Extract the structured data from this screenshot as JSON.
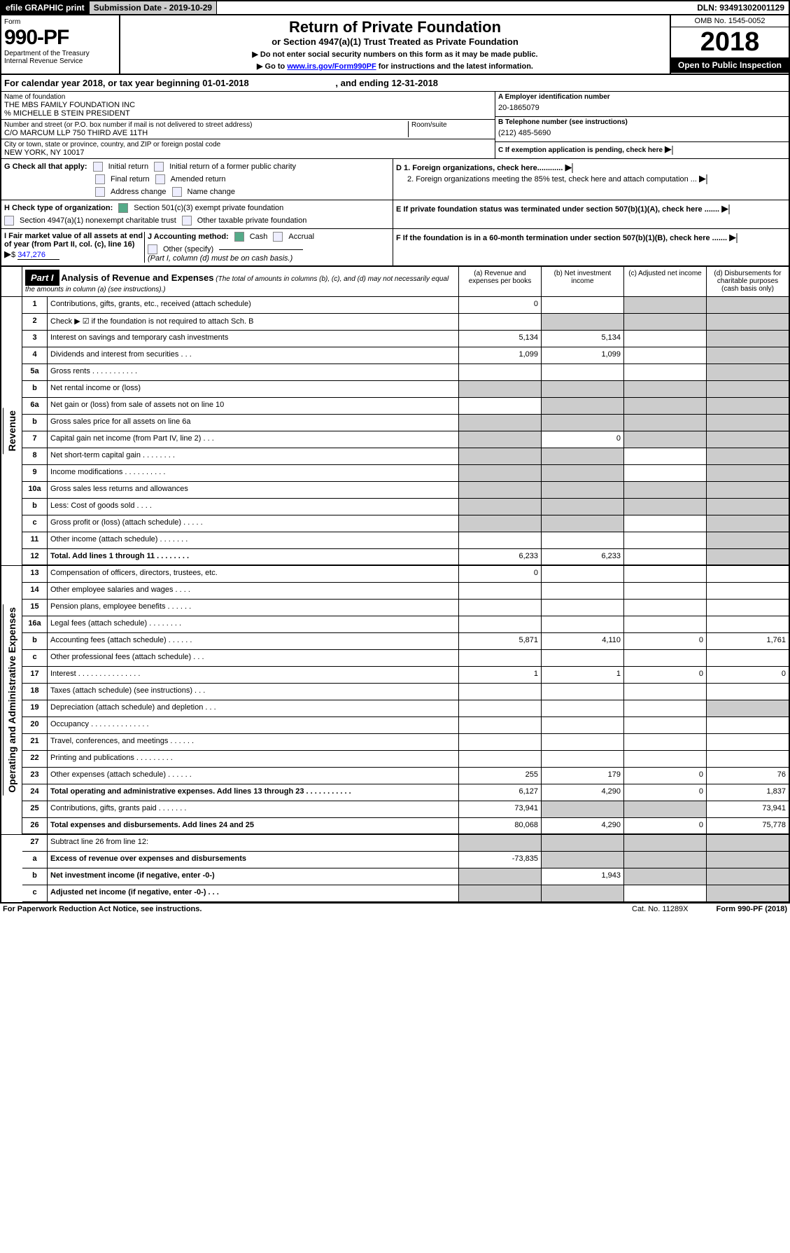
{
  "topbar": {
    "efile": "efile GRAPHIC print",
    "submission": "Submission Date - 2019-10-29",
    "dln": "DLN: 93491302001129"
  },
  "header": {
    "form_label": "Form",
    "form_num": "990-PF",
    "dept": "Department of the Treasury",
    "irs": "Internal Revenue Service",
    "title": "Return of Private Foundation",
    "subtitle": "or Section 4947(a)(1) Trust Treated as Private Foundation",
    "note1": "▶ Do not enter social security numbers on this form as it may be made public.",
    "note2_pre": "▶ Go to ",
    "note2_link": "www.irs.gov/Form990PF",
    "note2_post": " for instructions and the latest information.",
    "omb": "OMB No. 1545-0052",
    "year": "2018",
    "open": "Open to Public Inspection"
  },
  "calendar": {
    "pre": "For calendar year 2018, or tax year beginning ",
    "begin": "01-01-2018",
    "mid": " , and ending ",
    "end": "12-31-2018"
  },
  "info": {
    "name_label": "Name of foundation",
    "name": "THE MBS FAMILY FOUNDATION INC",
    "care_of": "% MICHELLE B STEIN PRESIDENT",
    "addr_label": "Number and street (or P.O. box number if mail is not delivered to street address)",
    "addr": "C/O MARCUM LLP 750 THIRD AVE 11TH",
    "room_label": "Room/suite",
    "city_label": "City or town, state or province, country, and ZIP or foreign postal code",
    "city": "NEW YORK, NY  10017",
    "ein_label": "A Employer identification number",
    "ein": "20-1865079",
    "phone_label": "B Telephone number (see instructions)",
    "phone": "(212) 485-5690",
    "c_label": "C If exemption application is pending, check here",
    "d1": "D 1. Foreign organizations, check here............",
    "d2": "2. Foreign organizations meeting the 85% test, check here and attach computation ...",
    "e_label": "E  If private foundation status was terminated under section 507(b)(1)(A), check here .......",
    "f_label": "F  If the foundation is in a 60-month termination under section 507(b)(1)(B), check here .......",
    "g_label": "G Check all that apply:",
    "g_init": "Initial return",
    "g_init_pub": "Initial return of a former public charity",
    "g_final": "Final return",
    "g_amend": "Amended return",
    "g_addr": "Address change",
    "g_name": "Name change",
    "h_label": "H Check type of organization:",
    "h_501c3": "Section 501(c)(3) exempt private foundation",
    "h_4947": "Section 4947(a)(1) nonexempt charitable trust",
    "h_other": "Other taxable private foundation",
    "i_label": "I Fair market value of all assets at end of year (from Part II, col. (c), line 16)",
    "i_val": "347,276",
    "j_label": "J Accounting method:",
    "j_cash": "Cash",
    "j_accrual": "Accrual",
    "j_other": "Other (specify)",
    "j_note": "(Part I, column (d) must be on cash basis.)"
  },
  "part1": {
    "label": "Part I",
    "title": "Analysis of Revenue and Expenses",
    "note": " (The total of amounts in columns (b), (c), and (d) may not necessarily equal the amounts in column (a) (see instructions).)",
    "col_a": "(a)    Revenue and expenses per books",
    "col_b": "(b)    Net investment income",
    "col_c": "(c)   Adjusted net income",
    "col_d": "(d)   Disbursements for charitable purposes (cash basis only)"
  },
  "groups": {
    "revenue": "Revenue",
    "expenses": "Operating and Administrative Expenses"
  },
  "rows": [
    {
      "n": "1",
      "label": "Contributions, gifts, grants, etc., received (attach schedule)",
      "a": "0",
      "b": "",
      "c": "g",
      "d": "g"
    },
    {
      "n": "2",
      "label": "Check ▶ ☑ if the foundation is not required to attach Sch. B",
      "a": "",
      "b": "g",
      "c": "g",
      "d": "g",
      "bold_parts": true
    },
    {
      "n": "3",
      "label": "Interest on savings and temporary cash investments",
      "a": "5,134",
      "b": "5,134",
      "c": "",
      "d": "g"
    },
    {
      "n": "4",
      "label": "Dividends and interest from securities   .   .   .",
      "a": "1,099",
      "b": "1,099",
      "c": "",
      "d": "g"
    },
    {
      "n": "5a",
      "label": "Gross rents      .    .    .    .    .    .    .    .    .    .    .",
      "a": "",
      "b": "",
      "c": "",
      "d": "g"
    },
    {
      "n": "b",
      "label": "Net rental income or (loss)",
      "a": "g",
      "b": "g",
      "c": "g",
      "d": "g"
    },
    {
      "n": "6a",
      "label": "Net gain or (loss) from sale of assets not on line 10",
      "a": "",
      "b": "g",
      "c": "g",
      "d": "g"
    },
    {
      "n": "b",
      "label": "Gross sales price for all assets on line 6a",
      "a": "g",
      "b": "g",
      "c": "g",
      "d": "g"
    },
    {
      "n": "7",
      "label": "Capital gain net income (from Part IV, line 2)    .   .   .",
      "a": "g",
      "b": "0",
      "c": "g",
      "d": "g"
    },
    {
      "n": "8",
      "label": "Net short-term capital gain   .    .    .    .    .    .    .    .",
      "a": "g",
      "b": "g",
      "c": "",
      "d": "g"
    },
    {
      "n": "9",
      "label": "Income modifications   .    .    .    .    .    .    .    .    .    .",
      "a": "g",
      "b": "g",
      "c": "",
      "d": "g"
    },
    {
      "n": "10a",
      "label": "Gross sales less returns and allowances",
      "a": "g",
      "b": "g",
      "c": "g",
      "d": "g"
    },
    {
      "n": "b",
      "label": "Less: Cost of goods sold     .    .    .    .",
      "a": "g",
      "b": "g",
      "c": "g",
      "d": "g"
    },
    {
      "n": "c",
      "label": "Gross profit or (loss) (attach schedule)    .   .   .   .   .",
      "a": "g",
      "b": "g",
      "c": "",
      "d": "g"
    },
    {
      "n": "11",
      "label": "Other income (attach schedule)    .    .    .    .    .    .    .",
      "a": "",
      "b": "",
      "c": "",
      "d": "g"
    },
    {
      "n": "12",
      "label": "Total. Add lines 1 through 11    .    .    .    .    .    .    .    .",
      "a": "6,233",
      "b": "6,233",
      "c": "",
      "d": "g",
      "bold": true
    }
  ],
  "exp_rows": [
    {
      "n": "13",
      "label": "Compensation of officers, directors, trustees, etc.",
      "a": "0",
      "b": "",
      "c": "",
      "d": ""
    },
    {
      "n": "14",
      "label": "Other employee salaries and wages    .   .   .   .",
      "a": "",
      "b": "",
      "c": "",
      "d": ""
    },
    {
      "n": "15",
      "label": "Pension plans, employee benefits   .    .    .    .    .    .",
      "a": "",
      "b": "",
      "c": "",
      "d": ""
    },
    {
      "n": "16a",
      "label": "Legal fees (attach schedule)   .    .    .    .    .    .    .    .",
      "a": "",
      "b": "",
      "c": "",
      "d": ""
    },
    {
      "n": "b",
      "label": "Accounting fees (attach schedule)   .    .    .    .    .    .",
      "a": "5,871",
      "b": "4,110",
      "c": "0",
      "d": "1,761"
    },
    {
      "n": "c",
      "label": "Other professional fees (attach schedule)    .   .   .",
      "a": "",
      "b": "",
      "c": "",
      "d": ""
    },
    {
      "n": "17",
      "label": "Interest   .    .    .    .    .    .    .    .    .    .    .    .    .    .    .",
      "a": "1",
      "b": "1",
      "c": "0",
      "d": "0"
    },
    {
      "n": "18",
      "label": "Taxes (attach schedule) (see instructions)    .   .   .",
      "a": "",
      "b": "",
      "c": "",
      "d": ""
    },
    {
      "n": "19",
      "label": "Depreciation (attach schedule) and depletion    .   .   .",
      "a": "",
      "b": "",
      "c": "",
      "d": "g"
    },
    {
      "n": "20",
      "label": "Occupancy   .    .    .    .    .    .    .    .    .    .    .    .    .    .",
      "a": "",
      "b": "",
      "c": "",
      "d": ""
    },
    {
      "n": "21",
      "label": "Travel, conferences, and meetings   .    .    .    .    .    .",
      "a": "",
      "b": "",
      "c": "",
      "d": ""
    },
    {
      "n": "22",
      "label": "Printing and publications   .    .    .    .    .    .    .    .    .",
      "a": "",
      "b": "",
      "c": "",
      "d": ""
    },
    {
      "n": "23",
      "label": "Other expenses (attach schedule)   .    .    .    .    .    .",
      "a": "255",
      "b": "179",
      "c": "0",
      "d": "76"
    },
    {
      "n": "24",
      "label": "Total operating and administrative expenses. Add lines 13 through 23    .    .    .    .    .    .    .    .    .    .    .",
      "a": "6,127",
      "b": "4,290",
      "c": "0",
      "d": "1,837",
      "bold": true
    },
    {
      "n": "25",
      "label": "Contributions, gifts, grants paid     .    .    .    .    .    .    .",
      "a": "73,941",
      "b": "g",
      "c": "g",
      "d": "73,941"
    },
    {
      "n": "26",
      "label": "Total expenses and disbursements. Add lines 24 and 25",
      "a": "80,068",
      "b": "4,290",
      "c": "0",
      "d": "75,778",
      "bold": true
    }
  ],
  "sub_rows": [
    {
      "n": "27",
      "label": "Subtract line 26 from line 12:",
      "a": "g",
      "b": "g",
      "c": "g",
      "d": "g"
    },
    {
      "n": "a",
      "label": "Excess of revenue over expenses and disbursements",
      "a": "-73,835",
      "b": "g",
      "c": "g",
      "d": "g",
      "bold": true
    },
    {
      "n": "b",
      "label": "Net investment income (if negative, enter -0-)",
      "a": "g",
      "b": "1,943",
      "c": "g",
      "d": "g",
      "bold": true
    },
    {
      "n": "c",
      "label": "Adjusted net income (if negative, enter -0-)    .   .   .",
      "a": "g",
      "b": "g",
      "c": "",
      "d": "g",
      "bold": true
    }
  ],
  "footer": {
    "left": "For Paperwork Reduction Act Notice, see instructions.",
    "mid": "Cat. No. 11289X",
    "right": "Form 990-PF (2018)"
  }
}
